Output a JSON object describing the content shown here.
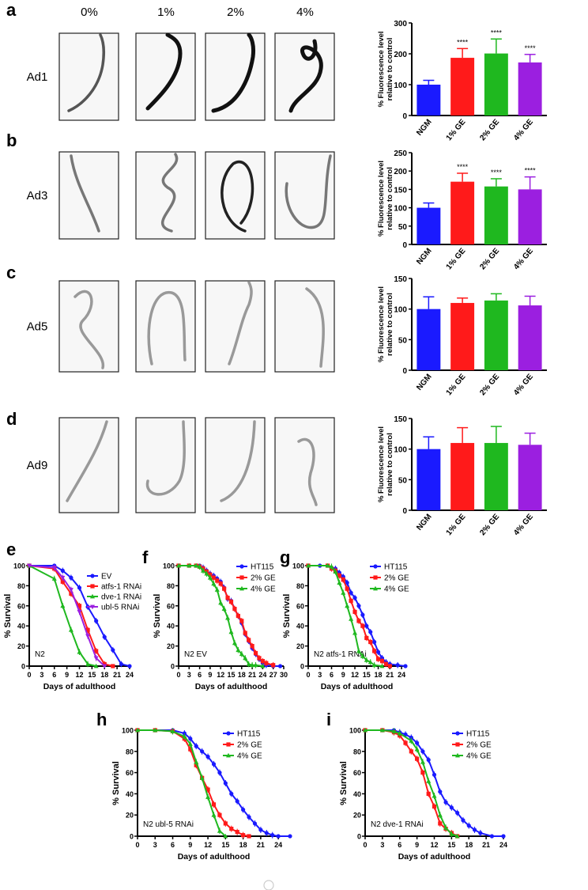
{
  "colors": {
    "blue": "#1a1aff",
    "red": "#ff1a1a",
    "green": "#1fb81f",
    "purple": "#9b1fe0"
  },
  "concentrations": [
    "0%",
    "1%",
    "2%",
    "4%"
  ],
  "panel_letters": [
    "a",
    "b",
    "c",
    "d",
    "e",
    "f",
    "g",
    "h",
    "i"
  ],
  "rows": [
    {
      "label": "Ad1"
    },
    {
      "label": "Ad3"
    },
    {
      "label": "Ad5"
    },
    {
      "label": "Ad9"
    }
  ],
  "chart_data": [
    {
      "panel": "a",
      "type": "bar",
      "ylabel": "% Fluorescence level relative to control",
      "categories": [
        "NGM",
        "1% GE",
        "2% GE",
        "4% GE"
      ],
      "values": [
        100,
        187,
        201,
        172
      ],
      "errors": [
        14,
        30,
        47,
        26
      ],
      "significance": [
        "",
        "****",
        "****",
        "****"
      ],
      "ylim": [
        0,
        300
      ],
      "yticks": [
        0,
        100,
        200,
        300
      ]
    },
    {
      "panel": "b",
      "type": "bar",
      "ylabel": "% Fluorescence level relative to control",
      "categories": [
        "NGM",
        "1% GE",
        "2% GE",
        "4% GE"
      ],
      "values": [
        100,
        171,
        158,
        150
      ],
      "errors": [
        13,
        23,
        21,
        34
      ],
      "significance": [
        "",
        "****",
        "****",
        "****"
      ],
      "ylim": [
        0,
        250
      ],
      "yticks": [
        0,
        50,
        100,
        150,
        200,
        250
      ]
    },
    {
      "panel": "c",
      "type": "bar",
      "ylabel": "% Fluorescence level relative to control",
      "categories": [
        "NGM",
        "1% GE",
        "2% GE",
        "4% GE"
      ],
      "values": [
        100,
        110,
        114,
        106
      ],
      "errors": [
        20,
        8,
        11,
        15
      ],
      "significance": [
        "",
        "",
        "",
        ""
      ],
      "ylim": [
        0,
        150
      ],
      "yticks": [
        0,
        50,
        100,
        150
      ]
    },
    {
      "panel": "d",
      "type": "bar",
      "ylabel": "% Fluorescence level relative to control",
      "categories": [
        "NGM",
        "1% GE",
        "2% GE",
        "4% GE"
      ],
      "values": [
        100,
        110,
        110,
        107
      ],
      "errors": [
        20,
        25,
        27,
        19
      ],
      "significance": [
        "",
        "",
        "",
        ""
      ],
      "ylim": [
        0,
        150
      ],
      "yticks": [
        0,
        50,
        100,
        150
      ]
    },
    {
      "panel": "e",
      "type": "line",
      "xlabel": "Days of adulthood",
      "ylabel": "% Survival",
      "annotation": "N2",
      "xlim": [
        0,
        24
      ],
      "ylim": [
        0,
        100
      ],
      "xticks": [
        0,
        3,
        6,
        9,
        12,
        15,
        18,
        21,
        24
      ],
      "yticks": [
        0,
        20,
        40,
        60,
        80,
        100
      ],
      "series": [
        {
          "name": "EV",
          "italic": "",
          "suffix": "",
          "color": "blue",
          "marker": "circle",
          "x": [
            0,
            6,
            8,
            10,
            12,
            14,
            16,
            18,
            20,
            22,
            24
          ],
          "y": [
            100,
            100,
            95,
            88,
            78,
            59,
            45,
            29,
            16,
            2,
            0
          ]
        },
        {
          "name": "atfs-1 RNAi",
          "italic": "atfs-1",
          "suffix": " RNAi",
          "color": "red",
          "marker": "square",
          "x": [
            0,
            6,
            8,
            10,
            12,
            14,
            16,
            18,
            20
          ],
          "y": [
            100,
            97,
            84,
            72,
            60,
            36,
            15,
            2,
            0
          ]
        },
        {
          "name": "dve-1 RNAi",
          "italic": "dve-1",
          "suffix": " RNAi",
          "color": "green",
          "marker": "triangle",
          "x": [
            0,
            6,
            8,
            10,
            12,
            14,
            16
          ],
          "y": [
            100,
            87,
            60,
            36,
            14,
            2,
            0
          ]
        },
        {
          "name": "ubl-5 RNAi",
          "italic": "ubl-5",
          "suffix": " RNAi",
          "color": "purple",
          "marker": "triangle-down",
          "x": [
            0,
            6,
            8,
            10,
            12,
            14,
            16,
            18
          ],
          "y": [
            100,
            98,
            88,
            76,
            54,
            30,
            8,
            0
          ]
        }
      ]
    },
    {
      "panel": "f",
      "type": "line",
      "xlabel": "Days of adulthood",
      "ylabel": "% Survival",
      "annotation": "N2 EV",
      "xlim": [
        0,
        30
      ],
      "ylim": [
        0,
        100
      ],
      "xticks": [
        0,
        3,
        6,
        9,
        12,
        15,
        18,
        21,
        24,
        27,
        30
      ],
      "ytick_labels_note": "",
      "yticks": [
        0,
        20,
        40,
        60,
        80,
        100
      ],
      "series": [
        {
          "name": "HT115",
          "color": "blue",
          "marker": "circle",
          "x": [
            0,
            3,
            5,
            6,
            7,
            8,
            9,
            10,
            11,
            12,
            13,
            14,
            15,
            16,
            17,
            18,
            19,
            20,
            21,
            22,
            23,
            24,
            25,
            27,
            29
          ],
          "y": [
            100,
            100,
            100,
            100,
            98,
            95,
            92,
            90,
            87,
            84,
            78,
            67,
            65,
            57,
            50,
            43,
            32,
            25,
            18,
            12,
            7,
            3,
            1,
            0,
            0
          ]
        },
        {
          "name": "2% GE",
          "color": "red",
          "marker": "square",
          "x": [
            0,
            3,
            5,
            6,
            7,
            8,
            9,
            10,
            11,
            12,
            13,
            14,
            15,
            16,
            17,
            18,
            19,
            20,
            21,
            22,
            23,
            24,
            25,
            27
          ],
          "y": [
            100,
            100,
            100,
            99,
            97,
            94,
            91,
            88,
            85,
            82,
            77,
            68,
            64,
            57,
            50,
            45,
            33,
            26,
            20,
            13,
            8,
            5,
            3,
            1
          ]
        },
        {
          "name": "4% GE",
          "color": "green",
          "marker": "triangle",
          "x": [
            0,
            3,
            5,
            6,
            7,
            8,
            9,
            10,
            11,
            12,
            13,
            14,
            15,
            16,
            17,
            18,
            19,
            20,
            21,
            22,
            24
          ],
          "y": [
            100,
            100,
            100,
            99,
            95,
            92,
            88,
            82,
            76,
            63,
            57,
            48,
            34,
            23,
            16,
            12,
            8,
            2,
            1,
            1,
            0
          ]
        }
      ]
    },
    {
      "panel": "g",
      "type": "line",
      "xlabel": "Days of adulthood",
      "ylabel": "% Survival",
      "annotation": "N2 atfs-1 RNAi",
      "annotation_italic": "atfs-1",
      "xlim": [
        0,
        25
      ],
      "ylim": [
        0,
        100
      ],
      "xticks": [
        0,
        3,
        6,
        9,
        12,
        15,
        18,
        21,
        24
      ],
      "yticks": [
        0,
        20,
        40,
        60,
        80,
        100
      ],
      "series": [
        {
          "name": "HT115",
          "color": "blue",
          "marker": "circle",
          "x": [
            0,
            3,
            5,
            6,
            7,
            8,
            9,
            10,
            11,
            12,
            13,
            14,
            15,
            16,
            17,
            18,
            19,
            20,
            21,
            23,
            25
          ],
          "y": [
            100,
            100,
            100,
            98,
            97,
            93,
            89,
            83,
            73,
            68,
            60,
            51,
            40,
            34,
            24,
            14,
            8,
            4,
            2,
            1,
            0
          ]
        },
        {
          "name": "2% GE",
          "color": "red",
          "marker": "square",
          "x": [
            0,
            5,
            6,
            7,
            8,
            9,
            10,
            11,
            12,
            13,
            14,
            15,
            16,
            17,
            18,
            19,
            20,
            21
          ],
          "y": [
            100,
            100,
            97,
            95,
            90,
            86,
            77,
            65,
            54,
            45,
            40,
            28,
            24,
            15,
            7,
            5,
            2,
            0
          ]
        },
        {
          "name": "4% GE",
          "color": "green",
          "marker": "triangle",
          "x": [
            0,
            5,
            6,
            7,
            8,
            9,
            10,
            11,
            12,
            13,
            14,
            15,
            16,
            17,
            19
          ],
          "y": [
            100,
            100,
            99,
            94,
            83,
            73,
            60,
            47,
            33,
            15,
            10,
            6,
            4,
            1,
            0
          ]
        }
      ]
    },
    {
      "panel": "h",
      "type": "line",
      "xlabel": "Days of adulthood",
      "ylabel": "% Survival",
      "annotation": "N2 ubl-5 RNAi",
      "annotation_italic": "ubl-5",
      "xlim": [
        0,
        26
      ],
      "ylim": [
        0,
        100
      ],
      "xticks": [
        0,
        3,
        6,
        9,
        12,
        15,
        18,
        21,
        24
      ],
      "yticks": [
        0,
        20,
        40,
        60,
        80,
        100
      ],
      "series": [
        {
          "name": "HT115",
          "color": "blue",
          "marker": "circle",
          "x": [
            0,
            3,
            6,
            8,
            9,
            10,
            11,
            12,
            13,
            14,
            15,
            16,
            17,
            18,
            19,
            20,
            21,
            22,
            23,
            24,
            26
          ],
          "y": [
            100,
            100,
            100,
            97,
            92,
            85,
            80,
            75,
            68,
            60,
            50,
            40,
            33,
            25,
            18,
            12,
            6,
            3,
            1,
            0,
            0
          ]
        },
        {
          "name": "2% GE",
          "color": "red",
          "marker": "square",
          "x": [
            0,
            3,
            6,
            8,
            9,
            10,
            11,
            12,
            13,
            14,
            15,
            16,
            17,
            18,
            19
          ],
          "y": [
            100,
            100,
            99,
            92,
            82,
            67,
            55,
            44,
            30,
            20,
            12,
            7,
            4,
            1,
            0
          ]
        },
        {
          "name": "4% GE",
          "color": "green",
          "marker": "triangle",
          "x": [
            0,
            3,
            6,
            8,
            9,
            10,
            11,
            12,
            13,
            14,
            15
          ],
          "y": [
            100,
            100,
            99,
            94,
            87,
            70,
            55,
            37,
            20,
            5,
            0
          ]
        }
      ]
    },
    {
      "panel": "i",
      "type": "line",
      "xlabel": "Days of adulthood",
      "ylabel": "% Survival",
      "annotation": "N2 dve-1 RNAi",
      "annotation_italic": "dve-1",
      "xlim": [
        0,
        24
      ],
      "ylim": [
        0,
        100
      ],
      "xticks": [
        0,
        3,
        6,
        9,
        12,
        15,
        18,
        21,
        24
      ],
      "yticks": [
        0,
        20,
        40,
        60,
        80,
        100
      ],
      "series": [
        {
          "name": "HT115",
          "color": "blue",
          "marker": "circle",
          "x": [
            0,
            3,
            5,
            6,
            7,
            8,
            9,
            10,
            11,
            12,
            13,
            14,
            15,
            16,
            17,
            18,
            19,
            20,
            22,
            24
          ],
          "y": [
            100,
            100,
            100,
            98,
            96,
            93,
            88,
            80,
            72,
            58,
            42,
            32,
            27,
            22,
            15,
            10,
            6,
            3,
            0,
            0
          ]
        },
        {
          "name": "2% GE",
          "color": "red",
          "marker": "square",
          "x": [
            0,
            3,
            5,
            6,
            7,
            8,
            9,
            10,
            11,
            12,
            13,
            14,
            15,
            16
          ],
          "y": [
            100,
            100,
            98,
            95,
            88,
            80,
            73,
            60,
            40,
            28,
            12,
            7,
            3,
            0
          ]
        },
        {
          "name": "4% GE",
          "color": "green",
          "marker": "triangle",
          "x": [
            0,
            3,
            5,
            6,
            8,
            9,
            10,
            11,
            12,
            13,
            14,
            15,
            16
          ],
          "y": [
            100,
            100,
            99,
            97,
            90,
            82,
            70,
            52,
            38,
            20,
            8,
            2,
            0
          ]
        }
      ]
    }
  ]
}
